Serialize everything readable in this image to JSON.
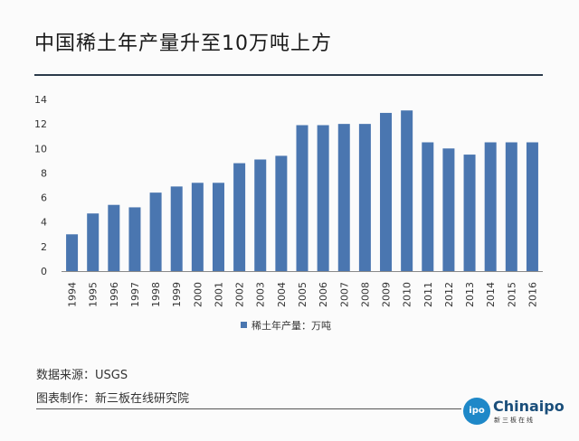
{
  "title": "中国稀土年产量升至10万吨上方",
  "source": "数据来源：USGS",
  "maker": "图表制作：新三板在线研究院",
  "logo": {
    "circle_text": "ipo",
    "brand": "Chinaipo",
    "sub": "新三板在线"
  },
  "colors": {
    "bar": "#4a76b0",
    "rule": "#2b3a4a"
  },
  "chart_data": {
    "type": "bar",
    "title": "",
    "categories": [
      "1994",
      "1995",
      "1996",
      "1997",
      "1998",
      "1999",
      "2000",
      "2001",
      "2002",
      "2003",
      "2004",
      "2005",
      "2006",
      "2007",
      "2008",
      "2009",
      "2010",
      "2011",
      "2012",
      "2013",
      "2014",
      "2015",
      "2016"
    ],
    "series": [
      {
        "name": "稀土年产量：万吨",
        "values": [
          3.0,
          4.7,
          5.4,
          5.2,
          6.4,
          6.9,
          7.2,
          7.2,
          8.8,
          9.1,
          9.4,
          11.9,
          11.9,
          12.0,
          12.0,
          12.9,
          13.1,
          10.5,
          10.0,
          9.5,
          10.5,
          10.5,
          10.5
        ]
      }
    ],
    "yticks": [
      "0",
      "2",
      "4",
      "6",
      "8",
      "10",
      "12",
      "14"
    ],
    "ylim": [
      0,
      14
    ],
    "grid": false,
    "legend": "bottom"
  }
}
